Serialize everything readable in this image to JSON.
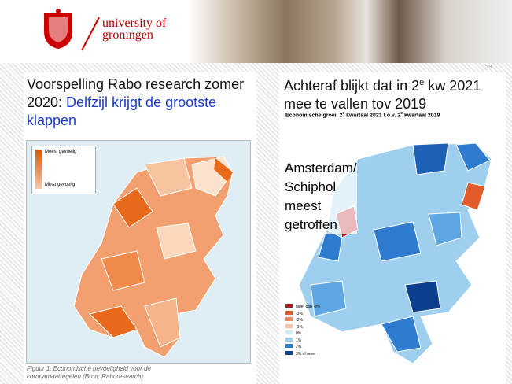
{
  "header": {
    "logo_line1": "university of",
    "logo_line2": "groningen",
    "page_number": "19"
  },
  "left": {
    "heading_plain": "Voorspelling Rabo research zomer 2020: ",
    "heading_highlight": "Delfzijl krijgt de grootste klappen",
    "map_legend": [
      "Meest gevoelig",
      "Minst gevoelig"
    ],
    "caption_line1": "Figuur 1: Economische gevoeligheid voor de",
    "caption_line2": "coronamaatregelen (Bron: Raboresearch)"
  },
  "right": {
    "heading_parts": [
      "Achteraf blijkt dat in 2",
      "e",
      " kw 2021 mee te vallen tov 2019"
    ],
    "subheading_parts": [
      "Economische groei, 2",
      "e",
      " kwartaal 2021 t.o.v. 2",
      "e",
      " kwartaal 2019"
    ],
    "annotation_lines": [
      "Amsterdam/",
      "Schiphol",
      "meest",
      "getroffen"
    ],
    "map_legend": [
      "lager dan -3%",
      "-3%",
      "-2%",
      "-1%",
      "0%",
      "1%",
      "2%",
      "3% of meer"
    ]
  }
}
